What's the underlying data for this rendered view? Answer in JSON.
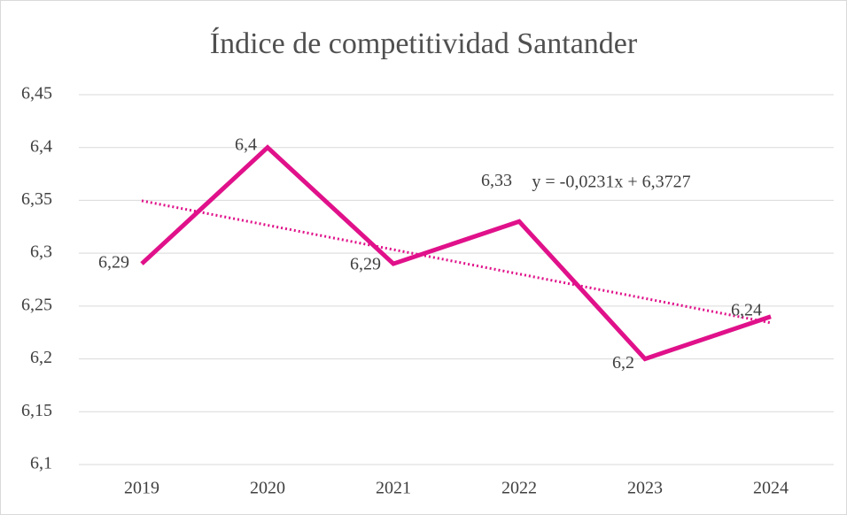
{
  "chart_data": {
    "type": "line",
    "title": "Índice de competitividad Santander",
    "categories": [
      "2019",
      "2020",
      "2021",
      "2022",
      "2023",
      "2024"
    ],
    "series": [
      {
        "color": "#e0118a",
        "values": [
          6.29,
          6.4,
          6.29,
          6.33,
          6.2,
          6.24
        ],
        "value_labels": [
          "6,29",
          "6,4",
          "6,29",
          "6,33",
          "6,2",
          "6,24"
        ]
      }
    ],
    "trendline": {
      "slope": -0.0231,
      "intercept": 6.3727,
      "label": "y = -0,0231x + 6,3727",
      "color": "#e0118a"
    },
    "ylim": [
      6.1,
      6.45
    ],
    "yticks": [
      {
        "value": 6.1,
        "label": "6,1"
      },
      {
        "value": 6.15,
        "label": "6,15"
      },
      {
        "value": 6.2,
        "label": "6,2"
      },
      {
        "value": 6.25,
        "label": "6,25"
      },
      {
        "value": 6.3,
        "label": "6,3"
      },
      {
        "value": 6.35,
        "label": "6,35"
      },
      {
        "value": 6.4,
        "label": "6,4"
      },
      {
        "value": 6.45,
        "label": "6,45"
      }
    ],
    "grid": true
  }
}
